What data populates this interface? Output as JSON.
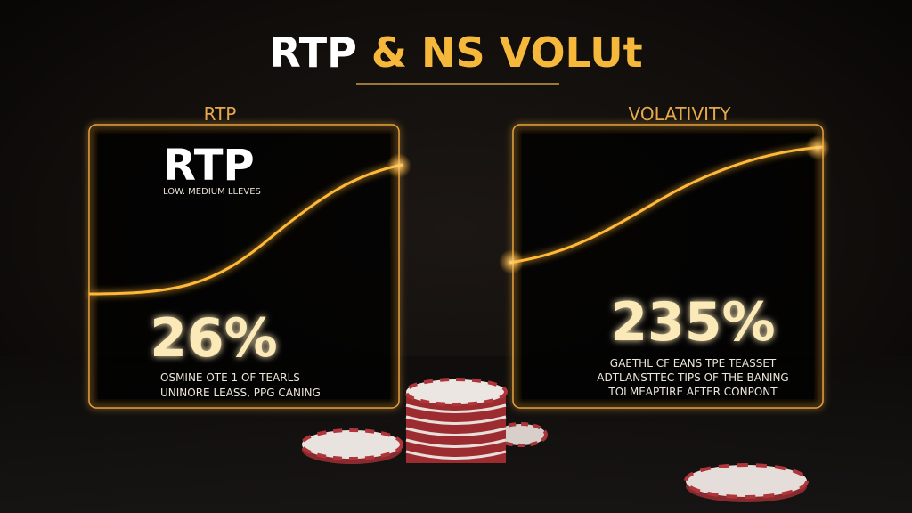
{
  "header": {
    "title_part1": "RTP",
    "title_part2": "& NS VOLUt"
  },
  "left_panel": {
    "label": "RTP",
    "heading": "RTP",
    "subheading": "LOW. MEDIUM LLEVES",
    "value": "26%",
    "description": [
      "OSMINE OTE 1 OF TEARLS",
      "UNINORE LEASS, PPG CANING"
    ]
  },
  "right_panel": {
    "label": "VOLATIVITY",
    "value": "235%",
    "description": [
      "GAETHL CF EANS TPE TEASSET",
      "ADTLANSTTEC TIPS OF THE BANING",
      "TOLMEAPTIRE AFTER CONPONT"
    ]
  }
}
